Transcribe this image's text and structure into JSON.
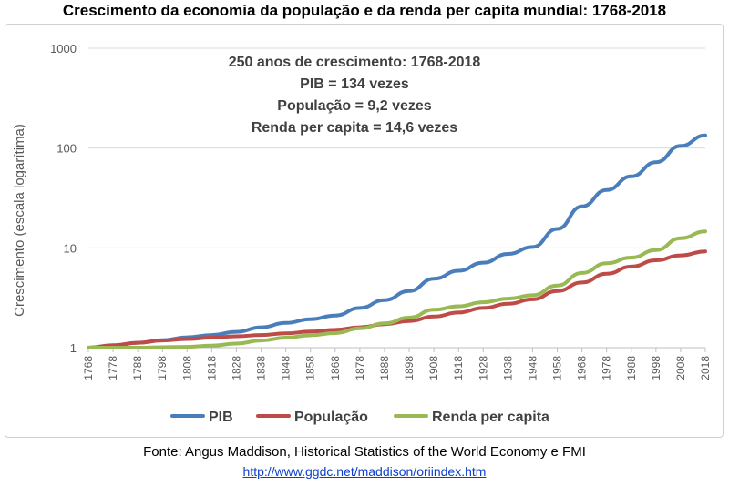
{
  "title": "Crescimento da economia da população e da renda per capita mundial: 1768-2018",
  "source": {
    "text": "Fonte: Angus Maddison, Historical Statistics of the World Economy e FMI",
    "link": "http://www.ggdc.net/maddison/oriindex.htm"
  },
  "chart_data": {
    "type": "line",
    "xlabel": "",
    "ylabel": "Crescimento (escala logarítima)",
    "y_scale": "log",
    "ylim": [
      1,
      1000
    ],
    "xlim": [
      1768,
      2018
    ],
    "y_ticks": [
      "1",
      "10",
      "100",
      "1000"
    ],
    "x_ticks": [
      "1768",
      "1778",
      "1788",
      "1798",
      "1808",
      "1818",
      "1828",
      "1838",
      "1848",
      "1858",
      "1868",
      "1878",
      "1888",
      "1898",
      "1908",
      "1918",
      "1928",
      "1938",
      "1948",
      "1958",
      "1968",
      "1978",
      "1988",
      "1998",
      "2008",
      "2018"
    ],
    "grid": "horizontal major lines",
    "legend_position": "bottom",
    "annotation": [
      "250 anos de crescimento: 1768-2018",
      "PIB = 134 vezes",
      "População = 9,2 vezes",
      "Renda per capita = 14,6 vezes"
    ],
    "series": [
      {
        "name": "PIB",
        "color": "#4a7ebb",
        "x": [
          1768,
          1778,
          1788,
          1798,
          1808,
          1818,
          1828,
          1838,
          1848,
          1858,
          1868,
          1878,
          1888,
          1898,
          1908,
          1918,
          1928,
          1938,
          1948,
          1958,
          1968,
          1978,
          1988,
          1998,
          2008,
          2018
        ],
        "y": [
          1.0,
          1.05,
          1.12,
          1.19,
          1.27,
          1.34,
          1.44,
          1.6,
          1.77,
          1.93,
          2.1,
          2.5,
          3.0,
          3.7,
          4.9,
          5.9,
          7.1,
          8.7,
          10.2,
          15.5,
          26,
          38,
          52,
          72,
          105,
          134
        ]
      },
      {
        "name": "População",
        "color": "#be4b48",
        "x": [
          1768,
          1778,
          1788,
          1798,
          1808,
          1818,
          1828,
          1838,
          1848,
          1858,
          1868,
          1878,
          1888,
          1898,
          1908,
          1918,
          1928,
          1938,
          1948,
          1958,
          1968,
          1978,
          1988,
          1998,
          2008,
          2018
        ],
        "y": [
          1.0,
          1.06,
          1.12,
          1.18,
          1.22,
          1.26,
          1.3,
          1.34,
          1.39,
          1.45,
          1.51,
          1.6,
          1.72,
          1.85,
          2.05,
          2.25,
          2.5,
          2.75,
          3.05,
          3.7,
          4.5,
          5.5,
          6.5,
          7.5,
          8.4,
          9.2
        ]
      },
      {
        "name": "Renda per capita",
        "color": "#98b954",
        "x": [
          1768,
          1778,
          1788,
          1798,
          1808,
          1818,
          1828,
          1838,
          1848,
          1858,
          1868,
          1878,
          1888,
          1898,
          1908,
          1918,
          1928,
          1938,
          1948,
          1958,
          1968,
          1978,
          1988,
          1998,
          2008,
          2018
        ],
        "y": [
          1.0,
          1.0,
          1.0,
          1.01,
          1.02,
          1.05,
          1.1,
          1.18,
          1.26,
          1.33,
          1.4,
          1.56,
          1.75,
          2.0,
          2.4,
          2.6,
          2.85,
          3.1,
          3.35,
          4.2,
          5.6,
          7.0,
          8.0,
          9.5,
          12.5,
          14.6
        ]
      }
    ]
  }
}
